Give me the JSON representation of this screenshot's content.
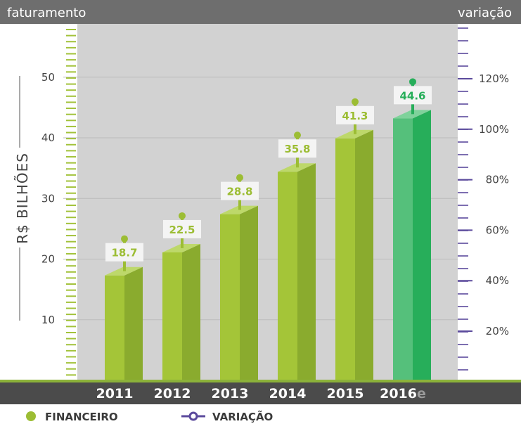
{
  "header": {
    "left_label": "faturamento",
    "right_label": "variação"
  },
  "colors": {
    "header_bg": "#6e6e6e",
    "plot_bg": "#d2d2d2",
    "bar_front": "#a4c538",
    "bar_side": "#8aab2e",
    "bar_top": "#bdd86a",
    "bar_front_estimate": "#55c07b",
    "bar_side_estimate": "#27ae5a",
    "bar_top_estimate": "#7fd29b",
    "label_green": "#9cbd34",
    "label_green_estimate": "#27ae5a",
    "left_ticks": "#a2c23a",
    "right_ticks": "#5b4a9c",
    "axis_band": "#4b4b4b",
    "axis_line": "#8cb23a"
  },
  "chart_data": {
    "type": "bar",
    "categories": [
      "2011",
      "2012",
      "2013",
      "2014",
      "2015",
      "2016"
    ],
    "category_suffix": [
      "",
      "",
      "",
      "",
      "",
      "e"
    ],
    "series": [
      {
        "name": "FINANCEIRO",
        "values": [
          18.7,
          22.5,
          28.8,
          35.8,
          41.3,
          44.6
        ]
      }
    ],
    "estimate_index": 5,
    "ylabel": "R$ BILHÕES",
    "y_ticks": [
      "10",
      "20",
      "30",
      "40",
      "50"
    ],
    "y_tick_values": [
      10,
      20,
      30,
      40,
      50
    ],
    "ylim": [
      0,
      60
    ],
    "y2_ticks": [
      "20%",
      "40%",
      "60%",
      "80%",
      "100%",
      "120%"
    ],
    "y2_tick_values": [
      20,
      40,
      60,
      80,
      100,
      120
    ],
    "y2lim": [
      0,
      140
    ],
    "grid": true
  },
  "legend": [
    {
      "label": "FINANCEIRO",
      "icon": "dot-icon",
      "color": "#9cbd34"
    },
    {
      "label": "VARIAÇÃO",
      "icon": "line-circle-icon",
      "color": "#5b4a9c"
    }
  ]
}
